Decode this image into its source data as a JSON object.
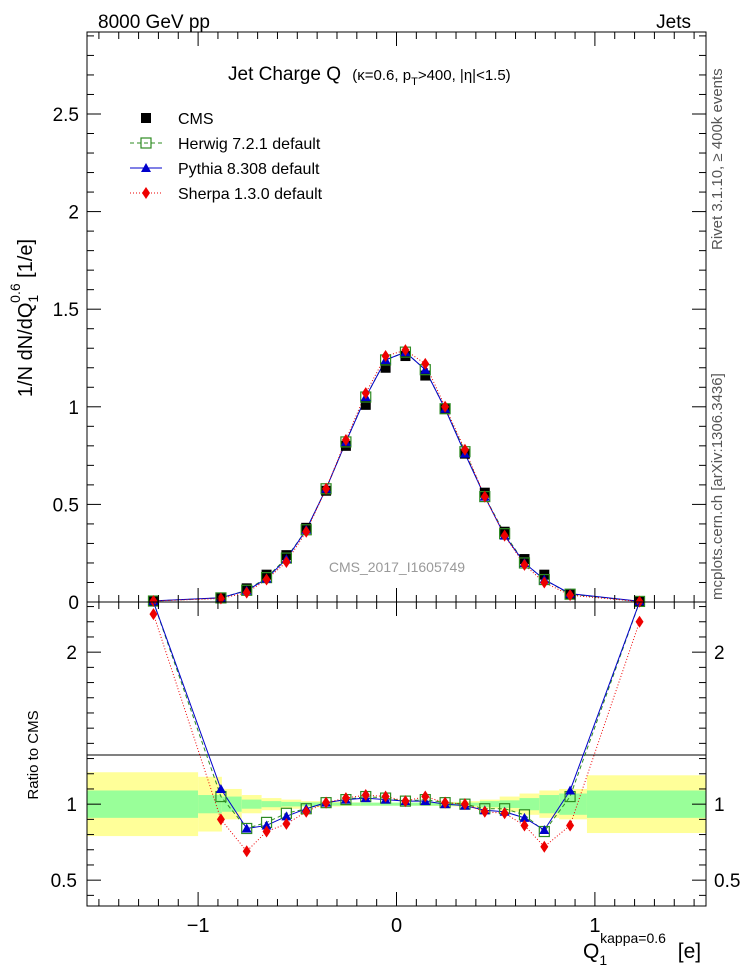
{
  "header": {
    "left_text": "8000 GeV pp",
    "right_text": "Jets",
    "side_text_top": "Rivet 3.1.10, ≥ 400k events",
    "side_text_bottom": "mcplots.cern.ch [arXiv:1306.3436]",
    "watermark": "CMS_2017_I1605749"
  },
  "colors": {
    "cms": "#000000",
    "herwig": "#2e8b22",
    "pythia": "#0000cc",
    "sherpa": "#ee0000",
    "band_inner": "#99ff99",
    "band_outer": "#ffff99"
  },
  "chart_data": [
    {
      "type": "scatter",
      "title_main": "Jet Charge Q",
      "title_kappa": "(κ=0.6, p",
      "title_T": "T",
      "title_rest": ">400, |η|<1.5)",
      "ylabel": "1/N dN/dQ",
      "ylabel_sub": "1",
      "ylabel_sup": "0.6",
      "ylabel_unit": " [1/e]",
      "xlim": [
        -1.56,
        1.56
      ],
      "ylim": [
        0,
        2.92
      ],
      "y_ticks": [
        "0",
        "0.5",
        "1",
        "1.5",
        "2",
        "2.5"
      ],
      "y_tick_values": [
        0,
        0.5,
        1,
        1.5,
        2,
        2.5
      ],
      "legend_position": "top-left",
      "x": [
        -1.225,
        -0.885,
        -0.755,
        -0.655,
        -0.555,
        -0.455,
        -0.355,
        -0.255,
        -0.155,
        -0.055,
        0.045,
        0.145,
        0.245,
        0.345,
        0.445,
        0.545,
        0.645,
        0.745,
        0.875,
        1.225
      ],
      "series": [
        {
          "name": "CMS",
          "key": "cms",
          "values": [
            0.005,
            0.02,
            0.07,
            0.14,
            0.24,
            0.38,
            0.57,
            0.8,
            1.01,
            1.2,
            1.26,
            1.16,
            0.99,
            0.76,
            0.56,
            0.36,
            0.22,
            0.14,
            0.04,
            0.003
          ]
        },
        {
          "name": "Herwig 7.2.1 default",
          "key": "herwig",
          "values": [
            0.005,
            0.021,
            0.06,
            0.125,
            0.225,
            0.37,
            0.58,
            0.82,
            1.05,
            1.24,
            1.28,
            1.19,
            0.99,
            0.77,
            0.54,
            0.35,
            0.2,
            0.115,
            0.04,
            0.003
          ]
        },
        {
          "name": "Pythia 8.308 default",
          "key": "pythia",
          "values": [
            0.006,
            0.022,
            0.058,
            0.12,
            0.22,
            0.37,
            0.58,
            0.82,
            1.05,
            1.24,
            1.28,
            1.19,
            0.99,
            0.76,
            0.54,
            0.34,
            0.2,
            0.115,
            0.043,
            0.004
          ]
        },
        {
          "name": "Sherpa 1.3.0 default",
          "key": "sherpa",
          "values": [
            0.005,
            0.018,
            0.048,
            0.115,
            0.205,
            0.36,
            0.58,
            0.83,
            1.07,
            1.26,
            1.29,
            1.22,
            1.0,
            0.78,
            0.54,
            0.34,
            0.19,
            0.1,
            0.035,
            0.002
          ]
        }
      ]
    },
    {
      "type": "line",
      "ylabel": "Ratio to CMS",
      "xlabel": "Q",
      "xlabel_sub": "1",
      "xlabel_sup": "kappa=0.6",
      "xlabel_unit": " [e]",
      "xlim": [
        -1.56,
        1.56
      ],
      "ylim": [
        0.33,
        2.33
      ],
      "x_ticks": [
        "−1",
        "0",
        "1"
      ],
      "x_tick_values": [
        -1,
        0,
        1
      ],
      "y_ticks": [
        "0.5",
        "1",
        "2"
      ],
      "y_tick_values": [
        0.5,
        1,
        2
      ],
      "band_edges": [
        -1.56,
        -1.0,
        -0.88,
        -0.78,
        -0.68,
        -0.58,
        -0.48,
        -0.38,
        -0.28,
        -0.18,
        -0.08,
        0.02,
        0.12,
        0.22,
        0.32,
        0.42,
        0.52,
        0.62,
        0.72,
        0.82,
        0.96,
        1.56
      ],
      "band_inner": [
        0.09,
        0.06,
        0.05,
        0.03,
        0.02,
        0.015,
        0.012,
        0.01,
        0.01,
        0.01,
        0.01,
        0.01,
        0.01,
        0.01,
        0.01,
        0.02,
        0.025,
        0.04,
        0.06,
        0.07,
        0.09
      ],
      "band_outer": [
        0.21,
        0.18,
        0.1,
        0.06,
        0.04,
        0.03,
        0.02,
        0.015,
        0.012,
        0.01,
        0.01,
        0.01,
        0.012,
        0.015,
        0.02,
        0.03,
        0.05,
        0.07,
        0.09,
        0.1,
        0.19
      ],
      "x": [
        -1.225,
        -0.885,
        -0.755,
        -0.655,
        -0.555,
        -0.455,
        -0.355,
        -0.255,
        -0.155,
        -0.055,
        0.045,
        0.145,
        0.245,
        0.345,
        0.445,
        0.545,
        0.645,
        0.745,
        0.875,
        1.225
      ],
      "series": [
        {
          "name": "Herwig 7.2.1 default",
          "key": "herwig",
          "values": [
            2.6,
            1.05,
            0.84,
            0.88,
            0.94,
            0.97,
            1.01,
            1.03,
            1.05,
            1.04,
            1.02,
            1.03,
            1.01,
            1.0,
            0.97,
            0.97,
            0.93,
            0.82,
            1.05,
            2.6
          ]
        },
        {
          "name": "Pythia 8.308 default",
          "key": "pythia",
          "values": [
            2.7,
            1.1,
            0.84,
            0.86,
            0.92,
            0.97,
            1.01,
            1.03,
            1.04,
            1.03,
            1.02,
            1.02,
            1.0,
            0.99,
            0.96,
            0.95,
            0.91,
            0.83,
            1.09,
            2.7
          ]
        },
        {
          "name": "Sherpa 1.3.0 default",
          "key": "sherpa",
          "values": [
            2.25,
            0.9,
            0.69,
            0.82,
            0.87,
            0.95,
            1.01,
            1.04,
            1.06,
            1.05,
            1.02,
            1.05,
            1.01,
            1.0,
            0.95,
            0.94,
            0.86,
            0.72,
            0.86,
            2.2
          ]
        }
      ]
    }
  ]
}
